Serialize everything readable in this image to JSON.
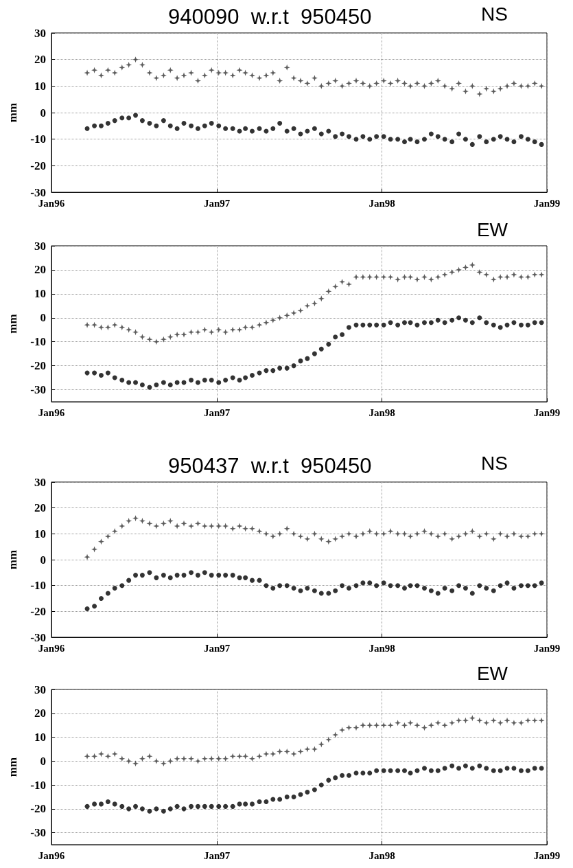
{
  "chart_data": [
    {
      "type": "scatter",
      "title": "940090  w.r.t  950450",
      "annotations": [
        "NS"
      ],
      "ylabel": "mm",
      "xlim": [
        "1996-01",
        "1999-01"
      ],
      "xticks": [
        {
          "value": "1996-01",
          "label": "Jan96"
        },
        {
          "value": "1997-01",
          "label": "Jan97"
        },
        {
          "value": "1998-01",
          "label": "Jan98"
        },
        {
          "value": "1999-01",
          "label": "Jan99"
        }
      ],
      "ylim": [
        -30,
        30
      ],
      "yticks": [
        -30,
        -20,
        -10,
        0,
        10,
        20,
        30
      ],
      "grid": true,
      "x": [
        "1996-03-20",
        "1996-04-05",
        "1996-04-20",
        "1996-05-05",
        "1996-05-20",
        "1996-06-05",
        "1996-06-20",
        "1996-07-05",
        "1996-07-20",
        "1996-08-05",
        "1996-08-20",
        "1996-09-05",
        "1996-09-20",
        "1996-10-05",
        "1996-10-20",
        "1996-11-05",
        "1996-11-20",
        "1996-12-05",
        "1996-12-20",
        "1997-01-05",
        "1997-01-20",
        "1997-02-05",
        "1997-02-20",
        "1997-03-05",
        "1997-03-20",
        "1997-04-05",
        "1997-04-20",
        "1997-05-05",
        "1997-05-20",
        "1997-06-05",
        "1997-06-20",
        "1997-07-05",
        "1997-07-20",
        "1997-08-05",
        "1997-08-20",
        "1997-09-05",
        "1997-09-20",
        "1997-10-05",
        "1997-10-20",
        "1997-11-05",
        "1997-11-20",
        "1997-12-05",
        "1997-12-20",
        "1998-01-05",
        "1998-01-20",
        "1998-02-05",
        "1998-02-20",
        "1998-03-05",
        "1998-03-20",
        "1998-04-05",
        "1998-04-20",
        "1998-05-05",
        "1998-05-20",
        "1998-06-05",
        "1998-06-20",
        "1998-07-05",
        "1998-07-20",
        "1998-08-05",
        "1998-08-20",
        "1998-09-05",
        "1998-09-20",
        "1998-10-05",
        "1998-10-20",
        "1998-11-05",
        "1998-11-20",
        "1998-12-05",
        "1998-12-20"
      ],
      "series": [
        {
          "color": "#333333",
          "marker": "star",
          "values": [
            15,
            16,
            14,
            16,
            15,
            17,
            18,
            20,
            18,
            15,
            13,
            14,
            16,
            13,
            14,
            15,
            12,
            14,
            16,
            15,
            15,
            14,
            16,
            15,
            14,
            13,
            14,
            15,
            12,
            17,
            13,
            12,
            11,
            13,
            10,
            11,
            12,
            10,
            11,
            12,
            11,
            10,
            11,
            12,
            11,
            12,
            11,
            10,
            11,
            10,
            11,
            12,
            10,
            9,
            11,
            8,
            10,
            7,
            9,
            8,
            9,
            10,
            11,
            10,
            10,
            11,
            10
          ]
        },
        {
          "color": "#000000",
          "marker": "circle",
          "values": [
            -6,
            -5,
            -5,
            -4,
            -3,
            -2,
            -2,
            -1,
            -3,
            -4,
            -5,
            -3,
            -5,
            -6,
            -4,
            -5,
            -6,
            -5,
            -4,
            -5,
            -6,
            -6,
            -7,
            -6,
            -7,
            -6,
            -7,
            -6,
            -4,
            -7,
            -6,
            -8,
            -7,
            -6,
            -8,
            -7,
            -9,
            -8,
            -9,
            -10,
            -9,
            -10,
            -9,
            -9,
            -10,
            -10,
            -11,
            -10,
            -11,
            -10,
            -8,
            -9,
            -10,
            -11,
            -8,
            -10,
            -12,
            -9,
            -11,
            -10,
            -9,
            -10,
            -11,
            -9,
            -10,
            -11,
            -12
          ]
        }
      ]
    },
    {
      "type": "scatter",
      "annotations": [
        "EW"
      ],
      "ylabel": "mm",
      "xlim": [
        "1996-01",
        "1999-01"
      ],
      "xticks": [
        {
          "value": "1996-01",
          "label": "Jan96"
        },
        {
          "value": "1997-01",
          "label": "Jan97"
        },
        {
          "value": "1998-01",
          "label": "Jan98"
        },
        {
          "value": "1999-01",
          "label": "Jan99"
        }
      ],
      "ylim": [
        -35,
        30
      ],
      "yticks": [
        -30,
        -20,
        -10,
        0,
        10,
        20,
        30
      ],
      "grid": true,
      "x": [
        "1996-03-20",
        "1996-04-05",
        "1996-04-20",
        "1996-05-05",
        "1996-05-20",
        "1996-06-05",
        "1996-06-20",
        "1996-07-05",
        "1996-07-20",
        "1996-08-05",
        "1996-08-20",
        "1996-09-05",
        "1996-09-20",
        "1996-10-05",
        "1996-10-20",
        "1996-11-05",
        "1996-11-20",
        "1996-12-05",
        "1996-12-20",
        "1997-01-05",
        "1997-01-20",
        "1997-02-05",
        "1997-02-20",
        "1997-03-05",
        "1997-03-20",
        "1997-04-05",
        "1997-04-20",
        "1997-05-05",
        "1997-05-20",
        "1997-06-05",
        "1997-06-20",
        "1997-07-05",
        "1997-07-20",
        "1997-08-05",
        "1997-08-20",
        "1997-09-05",
        "1997-09-20",
        "1997-10-05",
        "1997-10-20",
        "1997-11-05",
        "1997-11-20",
        "1997-12-05",
        "1997-12-20",
        "1998-01-05",
        "1998-01-20",
        "1998-02-05",
        "1998-02-20",
        "1998-03-05",
        "1998-03-20",
        "1998-04-05",
        "1998-04-20",
        "1998-05-05",
        "1998-05-20",
        "1998-06-05",
        "1998-06-20",
        "1998-07-05",
        "1998-07-20",
        "1998-08-05",
        "1998-08-20",
        "1998-09-05",
        "1998-09-20",
        "1998-10-05",
        "1998-10-20",
        "1998-11-05",
        "1998-11-20",
        "1998-12-05",
        "1998-12-20"
      ],
      "series": [
        {
          "color": "#333333",
          "marker": "star",
          "values": [
            -3,
            -3,
            -4,
            -4,
            -3,
            -4,
            -5,
            -6,
            -8,
            -9,
            -10,
            -9,
            -8,
            -7,
            -7,
            -6,
            -6,
            -5,
            -6,
            -5,
            -6,
            -5,
            -5,
            -4,
            -4,
            -3,
            -2,
            -1,
            0,
            1,
            2,
            3,
            5,
            6,
            8,
            11,
            13,
            15,
            14,
            17,
            17,
            17,
            17,
            17,
            17,
            16,
            17,
            17,
            16,
            17,
            16,
            17,
            18,
            19,
            20,
            21,
            22,
            19,
            18,
            16,
            17,
            17,
            18,
            17,
            17,
            18,
            18
          ]
        },
        {
          "color": "#000000",
          "marker": "circle",
          "values": [
            -23,
            -23,
            -24,
            -23,
            -25,
            -26,
            -27,
            -27,
            -28,
            -29,
            -28,
            -27,
            -28,
            -27,
            -27,
            -26,
            -27,
            -26,
            -26,
            -27,
            -26,
            -25,
            -26,
            -25,
            -24,
            -23,
            -22,
            -22,
            -21,
            -21,
            -20,
            -18,
            -17,
            -15,
            -13,
            -11,
            -8,
            -7,
            -4,
            -3,
            -3,
            -3,
            -3,
            -3,
            -2,
            -3,
            -2,
            -2,
            -3,
            -2,
            -2,
            -1,
            -2,
            -1,
            0,
            -1,
            -2,
            0,
            -2,
            -3,
            -4,
            -3,
            -2,
            -3,
            -3,
            -2,
            -2
          ]
        }
      ]
    },
    {
      "type": "scatter",
      "title": "950437  w.r.t  950450",
      "annotations": [
        "NS"
      ],
      "ylabel": "mm",
      "xlim": [
        "1996-01",
        "1999-01"
      ],
      "xticks": [
        {
          "value": "1996-01",
          "label": "Jan96"
        },
        {
          "value": "1997-01",
          "label": "Jan97"
        },
        {
          "value": "1998-01",
          "label": "Jan98"
        },
        {
          "value": "1999-01",
          "label": "Jan99"
        }
      ],
      "ylim": [
        -30,
        30
      ],
      "yticks": [
        -30,
        -20,
        -10,
        0,
        10,
        20,
        30
      ],
      "grid": true,
      "x": [
        "1996-03-20",
        "1996-04-05",
        "1996-04-20",
        "1996-05-05",
        "1996-05-20",
        "1996-06-05",
        "1996-06-20",
        "1996-07-05",
        "1996-07-20",
        "1996-08-05",
        "1996-08-20",
        "1996-09-05",
        "1996-09-20",
        "1996-10-05",
        "1996-10-20",
        "1996-11-05",
        "1996-11-20",
        "1996-12-05",
        "1996-12-20",
        "1997-01-05",
        "1997-01-20",
        "1997-02-05",
        "1997-02-20",
        "1997-03-05",
        "1997-03-20",
        "1997-04-05",
        "1997-04-20",
        "1997-05-05",
        "1997-05-20",
        "1997-06-05",
        "1997-06-20",
        "1997-07-05",
        "1997-07-20",
        "1997-08-05",
        "1997-08-20",
        "1997-09-05",
        "1997-09-20",
        "1997-10-05",
        "1997-10-20",
        "1997-11-05",
        "1997-11-20",
        "1997-12-05",
        "1997-12-20",
        "1998-01-05",
        "1998-01-20",
        "1998-02-05",
        "1998-02-20",
        "1998-03-05",
        "1998-03-20",
        "1998-04-05",
        "1998-04-20",
        "1998-05-05",
        "1998-05-20",
        "1998-06-05",
        "1998-06-20",
        "1998-07-05",
        "1998-07-20",
        "1998-08-05",
        "1998-08-20",
        "1998-09-05",
        "1998-09-20",
        "1998-10-05",
        "1998-10-20",
        "1998-11-05",
        "1998-11-20",
        "1998-12-05",
        "1998-12-20"
      ],
      "series": [
        {
          "color": "#333333",
          "marker": "star",
          "values": [
            1,
            4,
            7,
            9,
            11,
            13,
            15,
            16,
            15,
            14,
            13,
            14,
            15,
            13,
            14,
            13,
            14,
            13,
            13,
            13,
            13,
            12,
            13,
            12,
            12,
            11,
            10,
            9,
            10,
            12,
            10,
            9,
            8,
            10,
            8,
            7,
            8,
            9,
            10,
            9,
            10,
            11,
            10,
            10,
            11,
            10,
            10,
            9,
            10,
            11,
            10,
            9,
            10,
            8,
            9,
            10,
            11,
            9,
            10,
            8,
            10,
            9,
            10,
            9,
            9,
            10,
            10
          ]
        },
        {
          "color": "#000000",
          "marker": "circle",
          "values": [
            -19,
            -18,
            -15,
            -13,
            -11,
            -10,
            -8,
            -6,
            -6,
            -5,
            -7,
            -6,
            -7,
            -6,
            -6,
            -5,
            -6,
            -5,
            -6,
            -6,
            -6,
            -6,
            -7,
            -7,
            -8,
            -8,
            -10,
            -11,
            -10,
            -10,
            -11,
            -12,
            -11,
            -12,
            -13,
            -13,
            -12,
            -10,
            -11,
            -10,
            -9,
            -9,
            -10,
            -9,
            -10,
            -10,
            -11,
            -10,
            -10,
            -11,
            -12,
            -13,
            -11,
            -12,
            -10,
            -11,
            -13,
            -10,
            -11,
            -12,
            -10,
            -9,
            -11,
            -10,
            -10,
            -10,
            -9
          ]
        }
      ]
    },
    {
      "type": "scatter",
      "annotations": [
        "EW"
      ],
      "ylabel": "mm",
      "xlim": [
        "1996-01",
        "1999-01"
      ],
      "xticks": [
        {
          "value": "1996-01",
          "label": "Jan96"
        },
        {
          "value": "1997-01",
          "label": "Jan97"
        },
        {
          "value": "1998-01",
          "label": "Jan98"
        },
        {
          "value": "1999-01",
          "label": "Jan99"
        }
      ],
      "ylim": [
        -35,
        30
      ],
      "yticks": [
        -30,
        -20,
        -10,
        0,
        10,
        20,
        30
      ],
      "grid": true,
      "x": [
        "1996-03-20",
        "1996-04-05",
        "1996-04-20",
        "1996-05-05",
        "1996-05-20",
        "1996-06-05",
        "1996-06-20",
        "1996-07-05",
        "1996-07-20",
        "1996-08-05",
        "1996-08-20",
        "1996-09-05",
        "1996-09-20",
        "1996-10-05",
        "1996-10-20",
        "1996-11-05",
        "1996-11-20",
        "1996-12-05",
        "1996-12-20",
        "1997-01-05",
        "1997-01-20",
        "1997-02-05",
        "1997-02-20",
        "1997-03-05",
        "1997-03-20",
        "1997-04-05",
        "1997-04-20",
        "1997-05-05",
        "1997-05-20",
        "1997-06-05",
        "1997-06-20",
        "1997-07-05",
        "1997-07-20",
        "1997-08-05",
        "1997-08-20",
        "1997-09-05",
        "1997-09-20",
        "1997-10-05",
        "1997-10-20",
        "1997-11-05",
        "1997-11-20",
        "1997-12-05",
        "1997-12-20",
        "1998-01-05",
        "1998-01-20",
        "1998-02-05",
        "1998-02-20",
        "1998-03-05",
        "1998-03-20",
        "1998-04-05",
        "1998-04-20",
        "1998-05-05",
        "1998-05-20",
        "1998-06-05",
        "1998-06-20",
        "1998-07-05",
        "1998-07-20",
        "1998-08-05",
        "1998-08-20",
        "1998-09-05",
        "1998-09-20",
        "1998-10-05",
        "1998-10-20",
        "1998-11-05",
        "1998-11-20",
        "1998-12-05",
        "1998-12-20"
      ],
      "series": [
        {
          "color": "#333333",
          "marker": "star",
          "values": [
            2,
            2,
            3,
            2,
            3,
            1,
            0,
            -1,
            1,
            2,
            0,
            -1,
            0,
            1,
            1,
            1,
            0,
            1,
            1,
            1,
            1,
            2,
            2,
            2,
            1,
            2,
            3,
            3,
            4,
            4,
            3,
            4,
            5,
            5,
            7,
            9,
            11,
            13,
            14,
            14,
            15,
            15,
            15,
            15,
            15,
            16,
            15,
            16,
            15,
            14,
            15,
            16,
            15,
            16,
            17,
            17,
            18,
            17,
            16,
            17,
            16,
            17,
            16,
            16,
            17,
            17,
            17
          ]
        },
        {
          "color": "#000000",
          "marker": "circle",
          "values": [
            -19,
            -18,
            -18,
            -17,
            -18,
            -19,
            -20,
            -19,
            -20,
            -21,
            -20,
            -21,
            -20,
            -19,
            -20,
            -19,
            -19,
            -19,
            -19,
            -19,
            -19,
            -19,
            -18,
            -18,
            -18,
            -17,
            -17,
            -16,
            -16,
            -15,
            -15,
            -14,
            -13,
            -12,
            -10,
            -8,
            -7,
            -6,
            -6,
            -5,
            -5,
            -5,
            -4,
            -4,
            -4,
            -4,
            -4,
            -5,
            -4,
            -3,
            -4,
            -4,
            -3,
            -2,
            -3,
            -2,
            -3,
            -2,
            -3,
            -4,
            -4,
            -3,
            -3,
            -4,
            -4,
            -3,
            -3
          ]
        }
      ]
    }
  ]
}
